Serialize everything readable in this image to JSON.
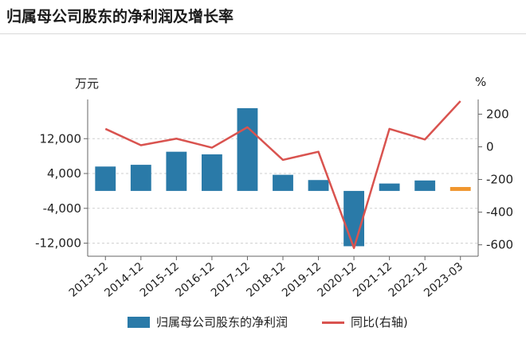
{
  "header": {
    "title": "归属母公司股东的净利润及增长率"
  },
  "units": {
    "left": "万元",
    "right": "%"
  },
  "legend": {
    "bar_label": "归属母公司股东的净利润",
    "line_label": "同比(右轴)"
  },
  "colors": {
    "bar": "#2a7aa8",
    "bar_highlight": "#f0962e",
    "line": "#d9534f",
    "grid": "#cfcfcf",
    "axis": "#666666"
  },
  "chart_data": {
    "type": "bar",
    "categories": [
      "2013-12",
      "2014-12",
      "2015-12",
      "2016-12",
      "2017-12",
      "2018-12",
      "2019-12",
      "2020-12",
      "2021-12",
      "2022-12",
      "2023-03"
    ],
    "series": [
      {
        "name": "归属母公司股东的净利润",
        "type": "bar",
        "axis": "left",
        "values": [
          5600,
          6000,
          9000,
          8400,
          19000,
          3700,
          2500,
          -12700,
          1700,
          2400,
          900
        ]
      },
      {
        "name": "同比(右轴)",
        "type": "line",
        "axis": "right",
        "values": [
          110,
          10,
          50,
          -5,
          120,
          -80,
          -30,
          -620,
          110,
          45,
          280
        ]
      }
    ],
    "highlight_last_bar": true,
    "left_axis": {
      "ylim": [
        -15000,
        21000
      ],
      "ticks": [
        -12000,
        -4000,
        4000,
        12000
      ],
      "tick_labels": [
        "-12,000",
        "-4,000",
        "4,000",
        "12,000"
      ]
    },
    "right_axis": {
      "ylim": [
        -670,
        290
      ],
      "ticks": [
        -600,
        -400,
        -200,
        0,
        200
      ],
      "tick_labels": [
        "-600",
        "-400",
        "-200",
        "0",
        "200"
      ]
    },
    "grid": true,
    "legend_position": "bottom"
  }
}
